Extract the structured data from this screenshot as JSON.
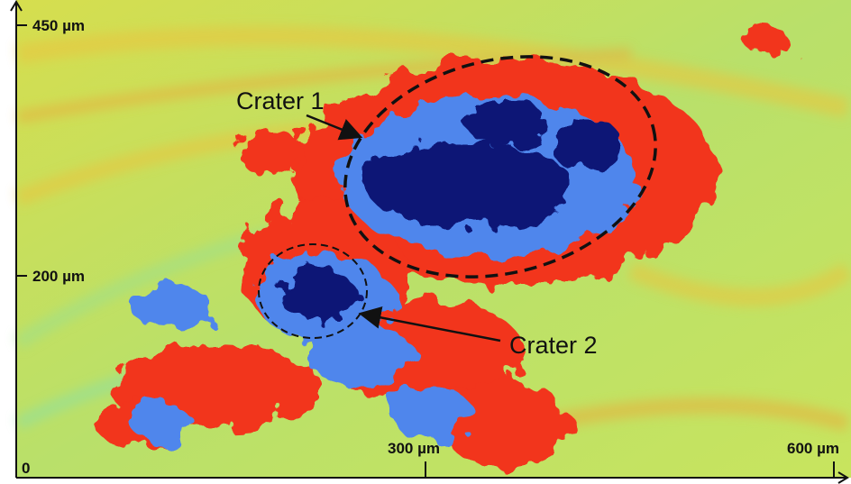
{
  "axis_labels": {
    "y_top": "450 µm",
    "y_mid": "200 µm",
    "origin": "0",
    "x_mid": "300 µm",
    "x_right": "600 µm"
  },
  "annotations": [
    "Crater 1",
    "Crater 2"
  ]
}
